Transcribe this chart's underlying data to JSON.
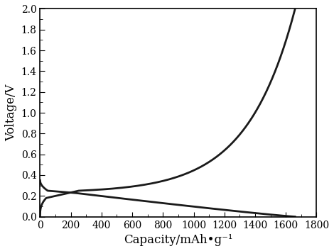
{
  "title": "",
  "xlabel": "Capacity/mAh•g⁻¹",
  "ylabel": "Voltage/V",
  "xlim": [
    0,
    1800
  ],
  "ylim": [
    0,
    2.0
  ],
  "xticks": [
    0,
    200,
    400,
    600,
    800,
    1000,
    1200,
    1400,
    1600,
    1800
  ],
  "yticks": [
    0.0,
    0.2,
    0.4,
    0.6,
    0.8,
    1.0,
    1.2,
    1.4,
    1.6,
    1.8,
    2.0
  ],
  "line_color": "#1a1a1a",
  "line_width": 2.0,
  "background_color": "#ffffff",
  "xlabel_fontsize": 12,
  "ylabel_fontsize": 12,
  "tick_fontsize": 10,
  "discharge_cap_max": 1660,
  "charge_cap_max": 1660
}
